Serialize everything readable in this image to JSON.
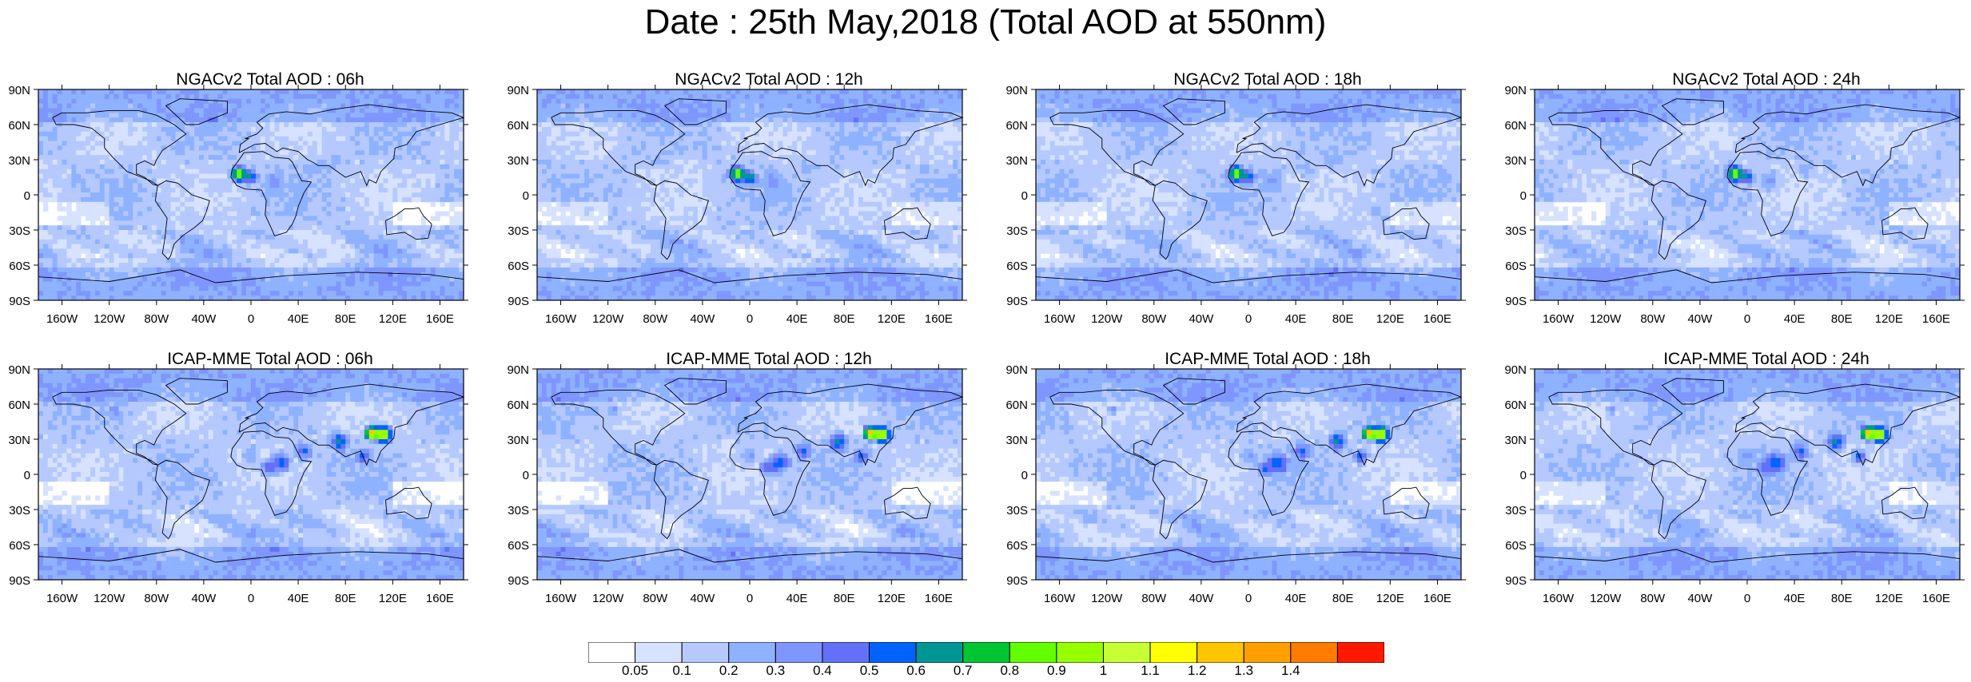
{
  "title": "Date : 25th May,2018 (Total AOD at 550nm)",
  "panels": [
    {
      "title": "NGACv2 Total AOD : 06h",
      "model": "NGACv2"
    },
    {
      "title": "NGACv2 Total AOD : 12h",
      "model": "NGACv2"
    },
    {
      "title": "NGACv2 Total AOD : 18h",
      "model": "NGACv2"
    },
    {
      "title": "NGACv2 Total AOD : 24h",
      "model": "NGACv2"
    },
    {
      "title": "ICAP-MME Total AOD : 06h",
      "model": "ICAP"
    },
    {
      "title": "ICAP-MME Total AOD : 12h",
      "model": "ICAP"
    },
    {
      "title": "ICAP-MME Total AOD : 18h",
      "model": "ICAP"
    },
    {
      "title": "ICAP-MME Total AOD : 24h",
      "model": "ICAP"
    }
  ],
  "lat_ticks": [
    "90N",
    "60N",
    "30N",
    "0",
    "30S",
    "60S",
    "90S"
  ],
  "lon_ticks": [
    "160W",
    "120W",
    "80W",
    "40W",
    "0",
    "40E",
    "80E",
    "120E",
    "160E"
  ],
  "colorbar": {
    "labels": [
      "0.05",
      "0.1",
      "0.2",
      "0.3",
      "0.4",
      "0.5",
      "0.6",
      "0.7",
      "0.8",
      "0.9",
      "1",
      "1.1",
      "1.2",
      "1.3",
      "1.4"
    ],
    "colors": [
      "#ffffff",
      "#d6e2ff",
      "#b5c9ff",
      "#8eb2ff",
      "#7f96ff",
      "#6370f8",
      "#0063ff",
      "#009696",
      "#00c633",
      "#63ff00",
      "#96ff00",
      "#c6ff33",
      "#ffff00",
      "#ffc600",
      "#ffa000",
      "#ff7c00",
      "#ff1900"
    ]
  }
}
